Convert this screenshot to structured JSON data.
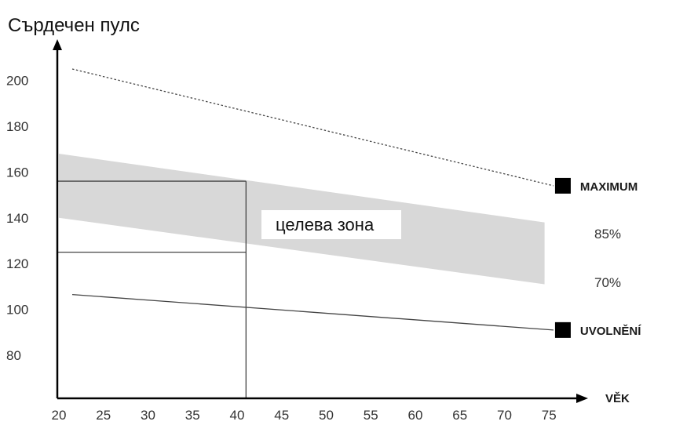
{
  "chart_data": {
    "type": "line",
    "ylabel": "Сърдечен пулс",
    "xlabel": "VĚK",
    "xlim": [
      20,
      77
    ],
    "ylim": [
      67,
      210
    ],
    "x_ticks": [
      20,
      25,
      30,
      35,
      40,
      45,
      50,
      55,
      60,
      65,
      70,
      75
    ],
    "y_ticks": [
      80,
      100,
      120,
      140,
      160,
      180,
      200
    ],
    "series": [
      {
        "name": "MAXIMUM",
        "style": "dotted",
        "x": [
          21.5,
          75.5
        ],
        "y": [
          205,
          154
        ]
      },
      {
        "name": "UVOLNĚNÍ",
        "style": "solid",
        "x": [
          21.5,
          75.5
        ],
        "y": [
          106.5,
          91
        ]
      }
    ],
    "band": {
      "label": "целева зона",
      "upper_name": "85%",
      "lower_name": "70%",
      "x": [
        20,
        74.5
      ],
      "upper": [
        168,
        138
      ],
      "lower": [
        140,
        111
      ],
      "color": "#d8d8d8"
    },
    "guides": {
      "x": 41,
      "y_upper": 156,
      "y_lower": 125
    }
  }
}
